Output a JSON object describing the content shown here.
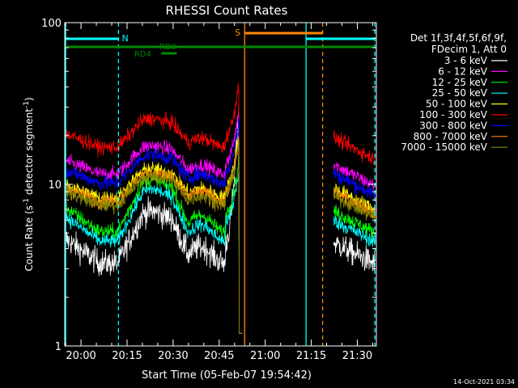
{
  "chart_data": {
    "type": "line",
    "title": "RHESSI Count Rates",
    "xlabel": "Start Time (05-Feb-07 19:54:42)",
    "ylabel_main": "Count Rate (s",
    "ylabel_sup1": "-1",
    "ylabel_mid": " detector segment",
    "ylabel_sup2": "-1",
    "ylabel_end": ")",
    "y_scale": "log",
    "ylim": [
      1,
      100
    ],
    "xlim_minutes": [
      -5.3,
      96.2
    ],
    "x_ticks": [
      {
        "label": "20:00",
        "min": 0
      },
      {
        "label": "20:15",
        "min": 15
      },
      {
        "label": "20:30",
        "min": 30
      },
      {
        "label": "20:45",
        "min": 45
      },
      {
        "label": "21:00",
        "min": 60
      },
      {
        "label": "21:15",
        "min": 75
      },
      {
        "label": "21:30",
        "min": 90
      }
    ],
    "y_ticks": [
      {
        "label": "1",
        "value": 1
      },
      {
        "label": "10",
        "value": 10
      },
      {
        "label": "100",
        "value": 100
      }
    ],
    "legend_header": [
      "Det 1f,3f,4f,5f,6f,9f,",
      "FDecim 1, Att 0"
    ],
    "legend_position": "right",
    "series": [
      {
        "name": "3 - 6 keV",
        "color": "#ffffff",
        "base": 4.6
      },
      {
        "name": "6 - 12 keV",
        "color": "#ff00ff",
        "base": 14.0
      },
      {
        "name": "12 - 25 keV",
        "color": "#00ff00",
        "base": 7.2
      },
      {
        "name": "25 - 50 keV",
        "color": "#00ffff",
        "base": 6.3
      },
      {
        "name": "50 - 100 keV",
        "color": "#ffff00",
        "base": 10.0
      },
      {
        "name": "100 - 300 keV",
        "color": "#ff0000",
        "base": 20.5
      },
      {
        "name": "300 - 800 keV",
        "color": "#0000ff",
        "base": 12.3
      },
      {
        "name": "800 - 7000 keV",
        "color": "#ff8800",
        "base": 9.5
      },
      {
        "name": "7000 - 15000 keV",
        "color": "#888800",
        "base": 9.0
      }
    ],
    "data_gap_minutes": [
      52.6,
      82.0
    ],
    "peak_minutes": 51.5,
    "annotations": {
      "night_label": "N",
      "saa_label": "S",
      "rd0_label": "RD0",
      "rd4_label": "RD4"
    },
    "vertical_lines": [
      {
        "min": -5.0,
        "color": "#00ffff",
        "style": "solid"
      },
      {
        "min": 12.2,
        "color": "#00ffff",
        "style": "dashed"
      },
      {
        "min": 53.3,
        "color": "#ff8800",
        "style": "solid"
      },
      {
        "min": 73.3,
        "color": "#00ffff",
        "style": "solid"
      },
      {
        "min": 78.7,
        "color": "#ff8800",
        "style": "dashed"
      },
      {
        "min": 95.7,
        "color": "#00ffff",
        "style": "dashed"
      }
    ],
    "colors": {
      "background": "#000000",
      "axes": "#ffffff",
      "night": "#00ffff",
      "saa": "#ff8800",
      "decim": "#008800"
    }
  },
  "footer": {
    "timestamp": "14-Oct-2021 03:34"
  }
}
